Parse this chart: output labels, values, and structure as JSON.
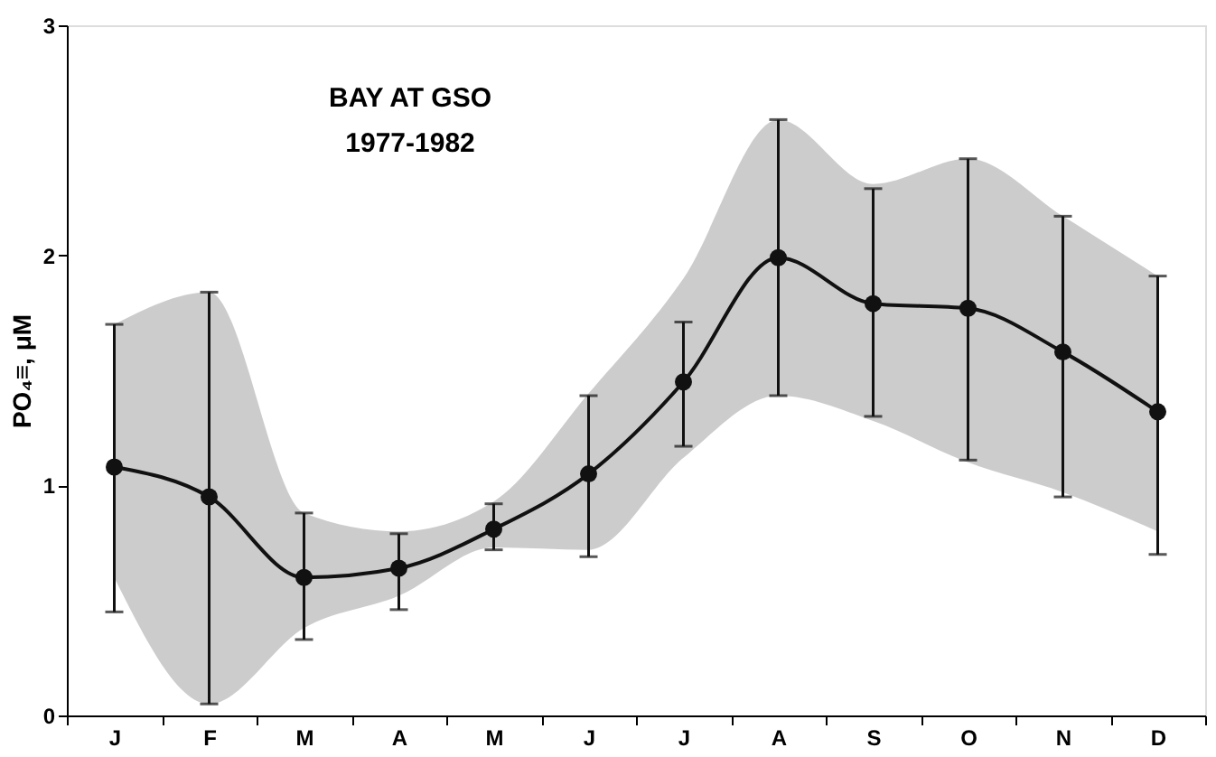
{
  "chart_data": {
    "type": "line",
    "categories": [
      "J",
      "F",
      "M",
      "A",
      "M",
      "J",
      "J",
      "A",
      "S",
      "O",
      "N",
      "D"
    ],
    "series": [
      {
        "color": "#111111",
        "marker": "circle",
        "line_style": "solid",
        "values": [
          1.08,
          0.95,
          0.6,
          0.64,
          0.81,
          1.05,
          1.45,
          1.99,
          1.79,
          1.77,
          1.58,
          1.32
        ],
        "errors": [
          [
            0.45,
            1.7
          ],
          [
            0.05,
            1.84
          ],
          [
            0.33,
            0.88
          ],
          [
            0.46,
            0.79
          ],
          [
            0.72,
            0.92
          ],
          [
            0.69,
            1.39
          ],
          [
            1.17,
            1.71
          ],
          [
            1.39,
            2.59
          ],
          [
            1.3,
            2.29
          ],
          [
            1.11,
            2.42
          ],
          [
            0.95,
            2.17
          ],
          [
            0.7,
            1.91
          ]
        ],
        "lower": [
          0.6,
          0.05,
          0.38,
          0.52,
          0.73,
          0.72,
          1.12,
          1.39,
          1.28,
          1.1,
          0.97,
          0.8
        ],
        "upper": [
          1.7,
          1.84,
          0.88,
          0.8,
          0.93,
          1.4,
          1.9,
          2.59,
          2.31,
          2.42,
          2.17,
          1.91
        ]
      }
    ],
    "ylabel": "PO₄≡, μM",
    "ylim": [
      0,
      3
    ],
    "yticks": [
      0,
      1,
      2,
      3
    ],
    "grid": false,
    "annotations": [
      "BAY AT GSO",
      "1977-1982"
    ]
  }
}
